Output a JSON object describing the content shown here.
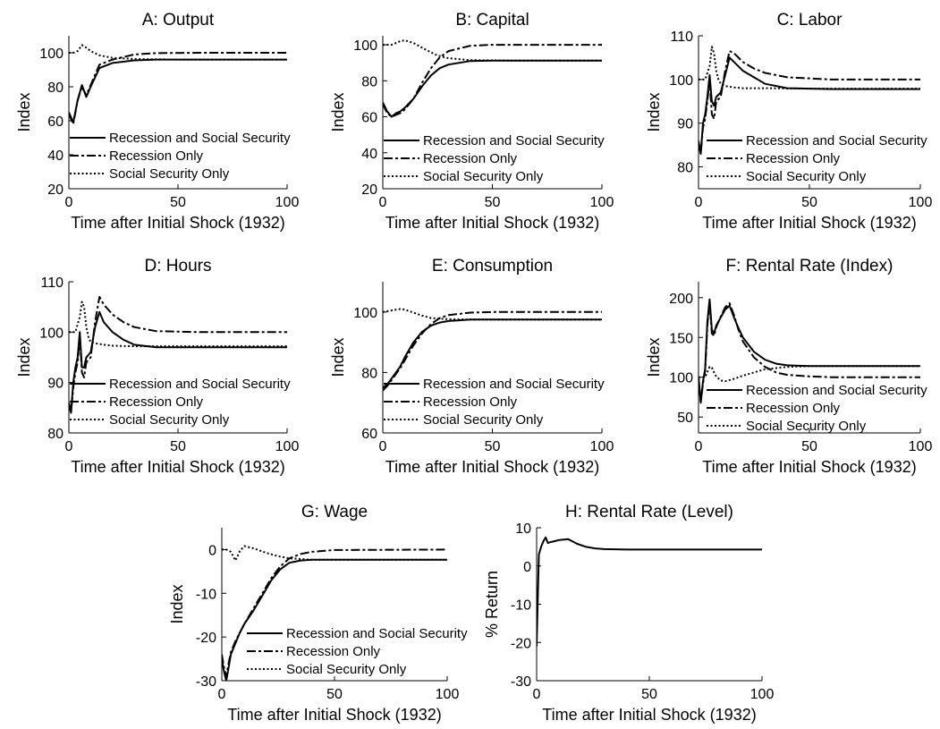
{
  "chart_data": [
    {
      "type": "line",
      "title": "A: Output",
      "xlabel": "Time after Initial Shock (1932)",
      "ylabel": "Index",
      "xlim": [
        0,
        100
      ],
      "ylim": [
        20,
        110
      ],
      "xticks": [
        0,
        50,
        100
      ],
      "yticks": [
        20,
        40,
        60,
        80,
        100
      ],
      "grid": false,
      "legend": "bottom-left",
      "series": [
        {
          "name": "Recession and Social Security",
          "style": "solid",
          "x": [
            0,
            1,
            2,
            4,
            6,
            8,
            10,
            14,
            20,
            30,
            40,
            60,
            100
          ],
          "y": [
            65,
            62,
            59,
            72,
            81,
            74,
            80,
            91,
            94,
            95.5,
            96,
            96,
            96
          ]
        },
        {
          "name": "Recession Only",
          "style": "dashdot",
          "x": [
            0,
            1,
            2,
            4,
            6,
            8,
            10,
            14,
            20,
            30,
            40,
            60,
            100
          ],
          "y": [
            64,
            61,
            58,
            72,
            80,
            75,
            81,
            93,
            96,
            99,
            99.8,
            100,
            100
          ]
        },
        {
          "name": "Social Security Only",
          "style": "dotted",
          "x": [
            0,
            2,
            4,
            6,
            8,
            10,
            14,
            20,
            30,
            50,
            100
          ],
          "y": [
            100,
            100,
            101,
            104.5,
            103,
            101,
            98.5,
            97,
            96.3,
            96,
            96
          ]
        }
      ]
    },
    {
      "type": "line",
      "title": "B: Capital",
      "xlabel": "Time after Initial Shock (1932)",
      "ylabel": "Index",
      "xlim": [
        0,
        100
      ],
      "ylim": [
        20,
        105
      ],
      "xticks": [
        0,
        50,
        100
      ],
      "yticks": [
        20,
        40,
        60,
        80,
        100
      ],
      "grid": false,
      "legend": "bottom-left",
      "series": [
        {
          "name": "Recession and Social Security",
          "style": "solid",
          "x": [
            0,
            2,
            4,
            6,
            8,
            10,
            14,
            18,
            22,
            26,
            30,
            40,
            50,
            100
          ],
          "y": [
            68,
            63,
            60,
            62,
            63,
            65,
            70,
            77,
            83,
            87,
            89,
            91,
            91.2,
            91.2
          ]
        },
        {
          "name": "Recession Only",
          "style": "dashdot",
          "x": [
            0,
            2,
            4,
            6,
            8,
            10,
            14,
            18,
            22,
            26,
            30,
            40,
            50,
            100
          ],
          "y": [
            67,
            62,
            60,
            61,
            62,
            64,
            70,
            79,
            87,
            93,
            96.5,
            99.5,
            100,
            100
          ]
        },
        {
          "name": "Social Security Only",
          "style": "dotted",
          "x": [
            0,
            4,
            8,
            10,
            14,
            20,
            25,
            30,
            40,
            60,
            100
          ],
          "y": [
            100,
            100,
            102,
            102.5,
            101,
            97,
            94,
            92.5,
            91.5,
            91.2,
            91.2
          ]
        }
      ]
    },
    {
      "type": "line",
      "title": "C: Labor",
      "xlabel": "Time after Initial Shock (1932)",
      "ylabel": "Index",
      "xlim": [
        0,
        100
      ],
      "ylim": [
        75,
        110
      ],
      "xticks": [
        0,
        50,
        100
      ],
      "yticks": [
        80,
        90,
        100,
        110
      ],
      "grid": false,
      "legend": "bottom-left",
      "series": [
        {
          "name": "Recession and Social Security",
          "style": "solid",
          "x": [
            0,
            1,
            2,
            3,
            4,
            5,
            6,
            7,
            8,
            10,
            12,
            14,
            16,
            20,
            25,
            30,
            40,
            60,
            100
          ],
          "y": [
            85,
            83,
            90,
            92,
            96,
            101,
            95,
            94,
            96,
            97,
            101,
            105,
            104,
            102,
            100.5,
            99,
            98,
            97.8,
            97.8
          ]
        },
        {
          "name": "Recession Only",
          "style": "dashdot",
          "x": [
            0,
            1,
            2,
            3,
            4,
            5,
            6,
            7,
            8,
            10,
            12,
            14,
            16,
            20,
            25,
            30,
            40,
            60,
            100
          ],
          "y": [
            86,
            83,
            89,
            91,
            95,
            100,
            92,
            91,
            95,
            96,
            102,
            106.5,
            106,
            104,
            102.5,
            101.5,
            100.5,
            100,
            100
          ]
        },
        {
          "name": "Social Security Only",
          "style": "dotted",
          "x": [
            0,
            3,
            5,
            6,
            7,
            8,
            9,
            10,
            12,
            16,
            20,
            30,
            50,
            100
          ],
          "y": [
            100,
            100,
            103,
            107.5,
            106,
            102,
            100,
            99,
            98.5,
            98.2,
            98,
            98,
            97.9,
            97.9
          ]
        }
      ]
    },
    {
      "type": "line",
      "title": "D: Hours",
      "xlabel": "Time after Initial Shock (1932)",
      "ylabel": "Index",
      "xlim": [
        0,
        100
      ],
      "ylim": [
        80,
        110
      ],
      "xticks": [
        0,
        50,
        100
      ],
      "yticks": [
        80,
        90,
        100,
        110
      ],
      "grid": false,
      "legend": "bottom-left",
      "series": [
        {
          "name": "Recession and Social Security",
          "style": "solid",
          "x": [
            0,
            1,
            2,
            3,
            4,
            5,
            6,
            7,
            8,
            10,
            12,
            14,
            16,
            20,
            25,
            30,
            40,
            60,
            100
          ],
          "y": [
            86,
            84,
            90,
            93,
            95,
            100,
            93,
            93,
            95,
            96,
            101,
            104,
            102,
            100,
            98.5,
            97.5,
            97,
            97,
            97
          ]
        },
        {
          "name": "Recession Only",
          "style": "dashdot",
          "x": [
            0,
            1,
            2,
            3,
            4,
            5,
            6,
            7,
            8,
            10,
            12,
            14,
            16,
            20,
            25,
            30,
            40,
            60,
            100
          ],
          "y": [
            86,
            84,
            89,
            92,
            94,
            99,
            92,
            91,
            94,
            95,
            102,
            107,
            105.5,
            103.5,
            102,
            101,
            100.2,
            100,
            100
          ]
        },
        {
          "name": "Social Security Only",
          "style": "dotted",
          "x": [
            0,
            3,
            5,
            6,
            7,
            8,
            9,
            10,
            12,
            16,
            20,
            30,
            50,
            100
          ],
          "y": [
            100,
            100,
            103,
            106,
            105,
            101,
            99,
            98,
            97.8,
            97.5,
            97.3,
            97.2,
            97.2,
            97.2
          ]
        }
      ]
    },
    {
      "type": "line",
      "title": "E: Consumption",
      "xlabel": "Time after Initial Shock (1932)",
      "ylabel": "Index",
      "xlim": [
        0,
        100
      ],
      "ylim": [
        60,
        110
      ],
      "xticks": [
        0,
        50,
        100
      ],
      "yticks": [
        60,
        80,
        100
      ],
      "grid": false,
      "legend": "bottom-left",
      "series": [
        {
          "name": "Recession and Social Security",
          "style": "solid",
          "x": [
            0,
            2,
            4,
            6,
            8,
            10,
            14,
            18,
            22,
            26,
            30,
            40,
            50,
            100
          ],
          "y": [
            75,
            76,
            78,
            80,
            82,
            85,
            90,
            93.5,
            95.5,
            96.5,
            97,
            97.5,
            97.5,
            97.5
          ]
        },
        {
          "name": "Recession Only",
          "style": "dashdot",
          "x": [
            0,
            2,
            4,
            6,
            8,
            10,
            14,
            18,
            22,
            26,
            30,
            40,
            50,
            100
          ],
          "y": [
            74,
            75.5,
            77.5,
            79.5,
            81.5,
            84,
            89,
            93,
            96,
            98,
            99,
            99.8,
            100,
            100
          ]
        },
        {
          "name": "Social Security Only",
          "style": "dotted",
          "x": [
            0,
            4,
            8,
            10,
            14,
            18,
            22,
            30,
            40,
            60,
            100
          ],
          "y": [
            100,
            100.5,
            101,
            100.8,
            99.8,
            98.8,
            98,
            97.6,
            97.5,
            97.5,
            97.5
          ]
        }
      ]
    },
    {
      "type": "line",
      "title": "F: Rental Rate (Index)",
      "xlabel": "Time after Initial Shock (1932)",
      "ylabel": "Index",
      "xlim": [
        0,
        100
      ],
      "ylim": [
        30,
        220
      ],
      "xticks": [
        0,
        50,
        100
      ],
      "yticks": [
        50,
        100,
        150,
        200
      ],
      "grid": false,
      "legend": "bottom-left",
      "series": [
        {
          "name": "Recession and Social Security",
          "style": "solid",
          "x": [
            0,
            1,
            2,
            3,
            4,
            5,
            6,
            7,
            8,
            10,
            12,
            14,
            16,
            18,
            20,
            25,
            30,
            35,
            40,
            50,
            100
          ],
          "y": [
            100,
            68,
            95,
            110,
            170,
            198,
            160,
            155,
            165,
            175,
            185,
            190,
            175,
            162,
            150,
            132,
            122,
            117,
            115,
            114,
            114
          ]
        },
        {
          "name": "Recession Only",
          "style": "dashdot",
          "x": [
            0,
            1,
            2,
            3,
            4,
            5,
            6,
            7,
            8,
            10,
            12,
            14,
            16,
            18,
            20,
            25,
            30,
            35,
            40,
            50,
            60,
            100
          ],
          "y": [
            100,
            68,
            92,
            108,
            165,
            195,
            155,
            152,
            163,
            176,
            188,
            193,
            178,
            160,
            145,
            125,
            113,
            106,
            103,
            101,
            100,
            100
          ]
        },
        {
          "name": "Social Security Only",
          "style": "dotted",
          "x": [
            0,
            3,
            5,
            6,
            7,
            8,
            10,
            12,
            16,
            20,
            25,
            30,
            40,
            50,
            100
          ],
          "y": [
            100,
            100,
            113,
            112,
            106,
            101,
            96,
            95,
            98,
            102,
            106,
            110,
            113,
            114,
            114
          ]
        }
      ]
    },
    {
      "type": "line",
      "title": "G: Wage",
      "xlabel": "Time after Initial Shock (1932)",
      "ylabel": "Index",
      "xlim": [
        0,
        100
      ],
      "ylim": [
        -30,
        5
      ],
      "xticks": [
        0,
        50,
        100
      ],
      "yticks": [
        -30,
        -20,
        -10,
        0
      ],
      "grid": false,
      "legend": "bottom-right",
      "series": [
        {
          "name": "Recession and Social Security",
          "style": "solid",
          "x": [
            0,
            1,
            2,
            3,
            4,
            6,
            8,
            10,
            14,
            18,
            22,
            26,
            30,
            35,
            40,
            50,
            100
          ],
          "y": [
            -25,
            -28,
            -30,
            -27,
            -24,
            -21.5,
            -19,
            -17,
            -14,
            -10.5,
            -7,
            -4.5,
            -3,
            -2.5,
            -2.3,
            -2.3,
            -2.3
          ]
        },
        {
          "name": "Recession Only",
          "style": "dashdot",
          "x": [
            0,
            1,
            2,
            3,
            4,
            6,
            8,
            10,
            14,
            18,
            22,
            26,
            30,
            35,
            40,
            50,
            100
          ],
          "y": [
            -24,
            -27,
            -29,
            -26,
            -23.5,
            -21,
            -19,
            -17,
            -13.5,
            -10,
            -6.5,
            -3.8,
            -2,
            -1,
            -0.5,
            -0.1,
            0
          ]
        },
        {
          "name": "Social Security Only",
          "style": "dotted",
          "x": [
            0,
            2,
            4,
            5,
            6,
            7,
            8,
            10,
            14,
            20,
            25,
            30,
            40,
            100
          ],
          "y": [
            0,
            0,
            -0.5,
            -1.5,
            -2.5,
            -1.5,
            -0.3,
            0.8,
            0.3,
            -0.8,
            -1.5,
            -2,
            -2.3,
            -2.3
          ]
        }
      ]
    },
    {
      "type": "line",
      "title": "H: Rental Rate (Level)",
      "xlabel": "Time after Initial Shock (1932)",
      "ylabel": "% Return",
      "xlim": [
        0,
        100
      ],
      "ylim": [
        -30,
        10
      ],
      "xticks": [
        0,
        50,
        100
      ],
      "yticks": [
        -30,
        -20,
        -10,
        0,
        10
      ],
      "grid": false,
      "series": [
        {
          "style": "solid",
          "x": [
            0,
            1,
            2,
            3,
            4,
            5,
            6,
            8,
            10,
            14,
            18,
            22,
            26,
            30,
            40,
            50,
            100
          ],
          "y": [
            -21,
            3,
            5,
            6.5,
            7.5,
            6,
            6.2,
            6.5,
            6.8,
            7,
            5.8,
            5,
            4.6,
            4.4,
            4.3,
            4.3,
            4.3
          ]
        }
      ]
    }
  ]
}
